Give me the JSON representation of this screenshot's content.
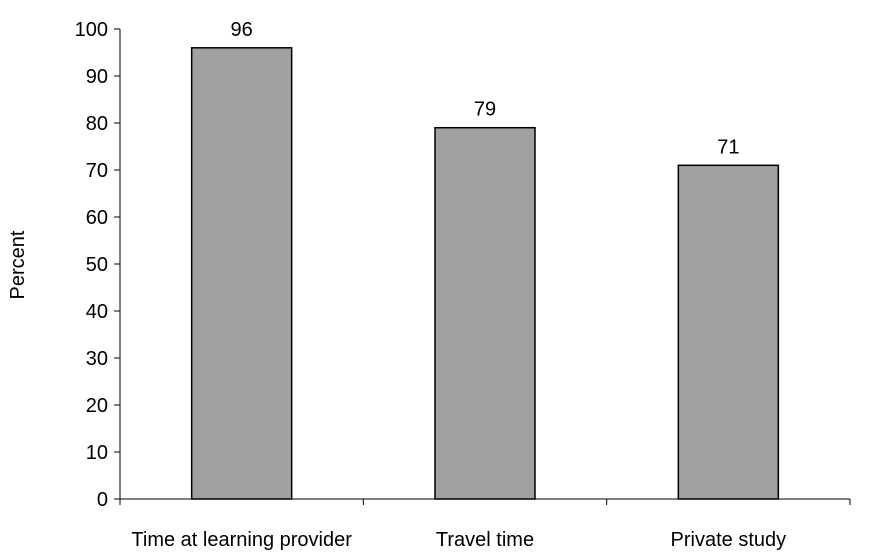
{
  "chart_data": {
    "type": "bar",
    "categories": [
      "Time at learning provider",
      "Travel time",
      "Private study"
    ],
    "values": [
      96,
      79,
      71
    ],
    "data_labels": [
      "96",
      "79",
      "71"
    ],
    "title": "",
    "xlabel": "",
    "ylabel": "Percent",
    "ylim": [
      0,
      100
    ],
    "yticks": [
      0,
      10,
      20,
      30,
      40,
      50,
      60,
      70,
      80,
      90,
      100
    ],
    "ytick_labels": [
      "0",
      "10",
      "20",
      "30",
      "40",
      "50",
      "60",
      "70",
      "80",
      "90",
      "100"
    ],
    "grid": false,
    "legend": "none",
    "bar_color": "#a0a0a0",
    "bar_edge_color": "#000000"
  }
}
